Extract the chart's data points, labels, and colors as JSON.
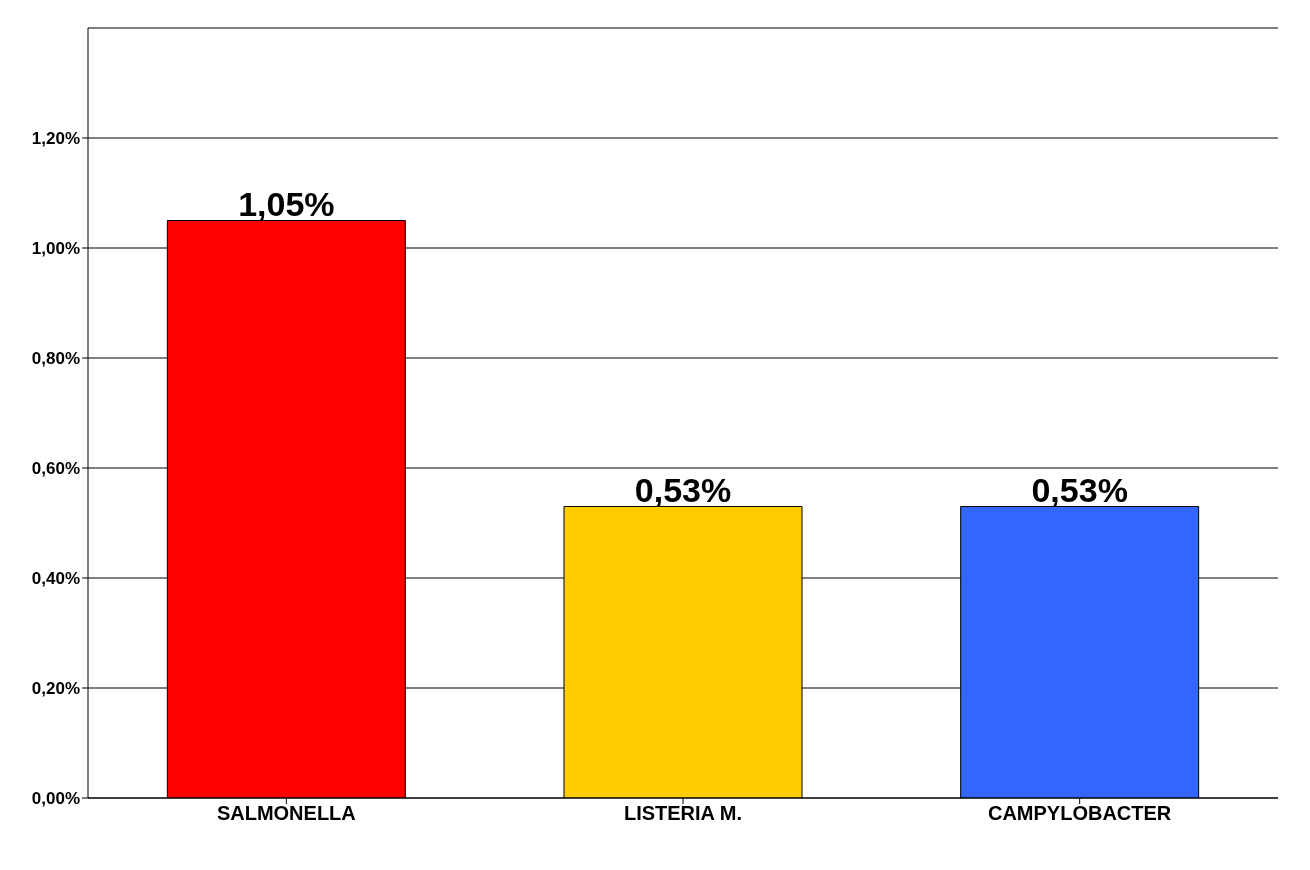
{
  "chart_data": {
    "type": "bar",
    "categories": [
      "SALMONELLA",
      "LISTERIA M.",
      "CAMPYLOBACTER"
    ],
    "values": [
      1.05,
      0.53,
      0.53
    ],
    "colors": [
      "#ff0000",
      "#ffcc00",
      "#3366ff"
    ],
    "value_labels": [
      "1,05%",
      "0,53%",
      "0,53%"
    ],
    "ylim": [
      0,
      1.4
    ],
    "yticks": [
      {
        "value": 0,
        "label": "0,00%"
      },
      {
        "value": 0.2,
        "label": "0,20%"
      },
      {
        "value": 0.4,
        "label": "0,40%"
      },
      {
        "value": 0.6,
        "label": "0,60%"
      },
      {
        "value": 0.8,
        "label": "0,80%"
      },
      {
        "value": 1,
        "label": "1,00%"
      },
      {
        "value": 1.2,
        "label": "1,20%"
      }
    ],
    "grid": "y",
    "legend": false
  }
}
